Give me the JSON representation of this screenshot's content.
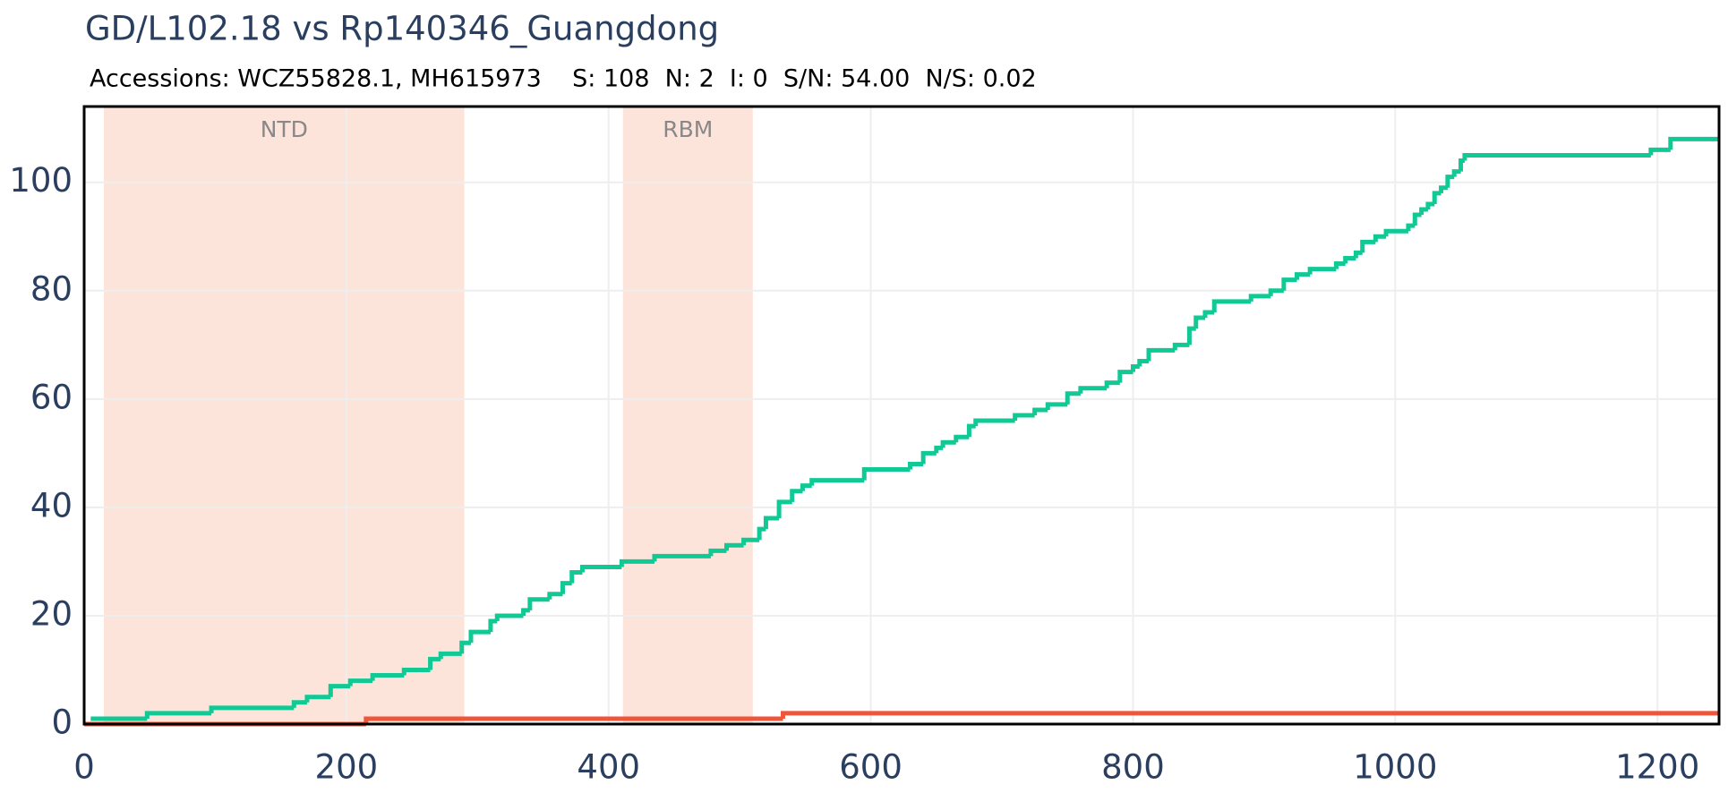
{
  "chart_data": {
    "type": "line",
    "title": "GD/L102.18 vs Rp140346_Guangdong",
    "subtitle": "Accessions: WCZ55828.1, MH615973    S: 108  N: 2  I: 0  S/N: 54.00  N/S: 0.02",
    "line_shape": "step",
    "regions": [
      {
        "label": "NTD",
        "x0": 15,
        "x1": 290,
        "color": "#fde4da"
      },
      {
        "label": "RBM",
        "x0": 411,
        "x1": 510,
        "color": "#fde4da"
      }
    ],
    "series": [
      {
        "color": "#10c994",
        "x": [
          5,
          48,
          97,
          160,
          170,
          188,
          203,
          220,
          244,
          264,
          272,
          288,
          295,
          310,
          315,
          335,
          340,
          355,
          365,
          372,
          380,
          410,
          435,
          478,
          490,
          503,
          515,
          520,
          530,
          540,
          548,
          555,
          595,
          630,
          640,
          650,
          655,
          665,
          675,
          680,
          710,
          725,
          735,
          750,
          760,
          780,
          790,
          800,
          805,
          812,
          832,
          843,
          848,
          855,
          862,
          890,
          905,
          915,
          925,
          935,
          955,
          962,
          970,
          975,
          985,
          993,
          1010,
          1015,
          1020,
          1025,
          1030,
          1035,
          1040,
          1045,
          1050,
          1053,
          1195,
          1210,
          1247
        ],
        "values": [
          1,
          2,
          3,
          4,
          5,
          7,
          8,
          9,
          10,
          12,
          13,
          15,
          17,
          19,
          20,
          21,
          23,
          24,
          26,
          28,
          29,
          30,
          31,
          32,
          33,
          34,
          36,
          38,
          41,
          43,
          44,
          45,
          47,
          48,
          50,
          51,
          52,
          53,
          55,
          56,
          57,
          58,
          59,
          61,
          62,
          63,
          65,
          66,
          67,
          69,
          70,
          73,
          75,
          76,
          78,
          79,
          80,
          82,
          83,
          84,
          85,
          86,
          87,
          89,
          90,
          91,
          92,
          94,
          95,
          96,
          98,
          99,
          101,
          102,
          104,
          105,
          106,
          108,
          108
        ]
      },
      {
        "color": "#ef553b",
        "x": [
          0,
          215,
          533,
          1247
        ],
        "values": [
          0,
          1,
          2,
          2
        ]
      }
    ],
    "xlim": [
      0,
      1247
    ],
    "ylim": [
      0,
      114
    ],
    "xticks": [
      0,
      200,
      400,
      600,
      800,
      1000,
      1200
    ],
    "yticks": [
      0,
      20,
      40,
      60,
      80,
      100
    ],
    "grid": true
  }
}
